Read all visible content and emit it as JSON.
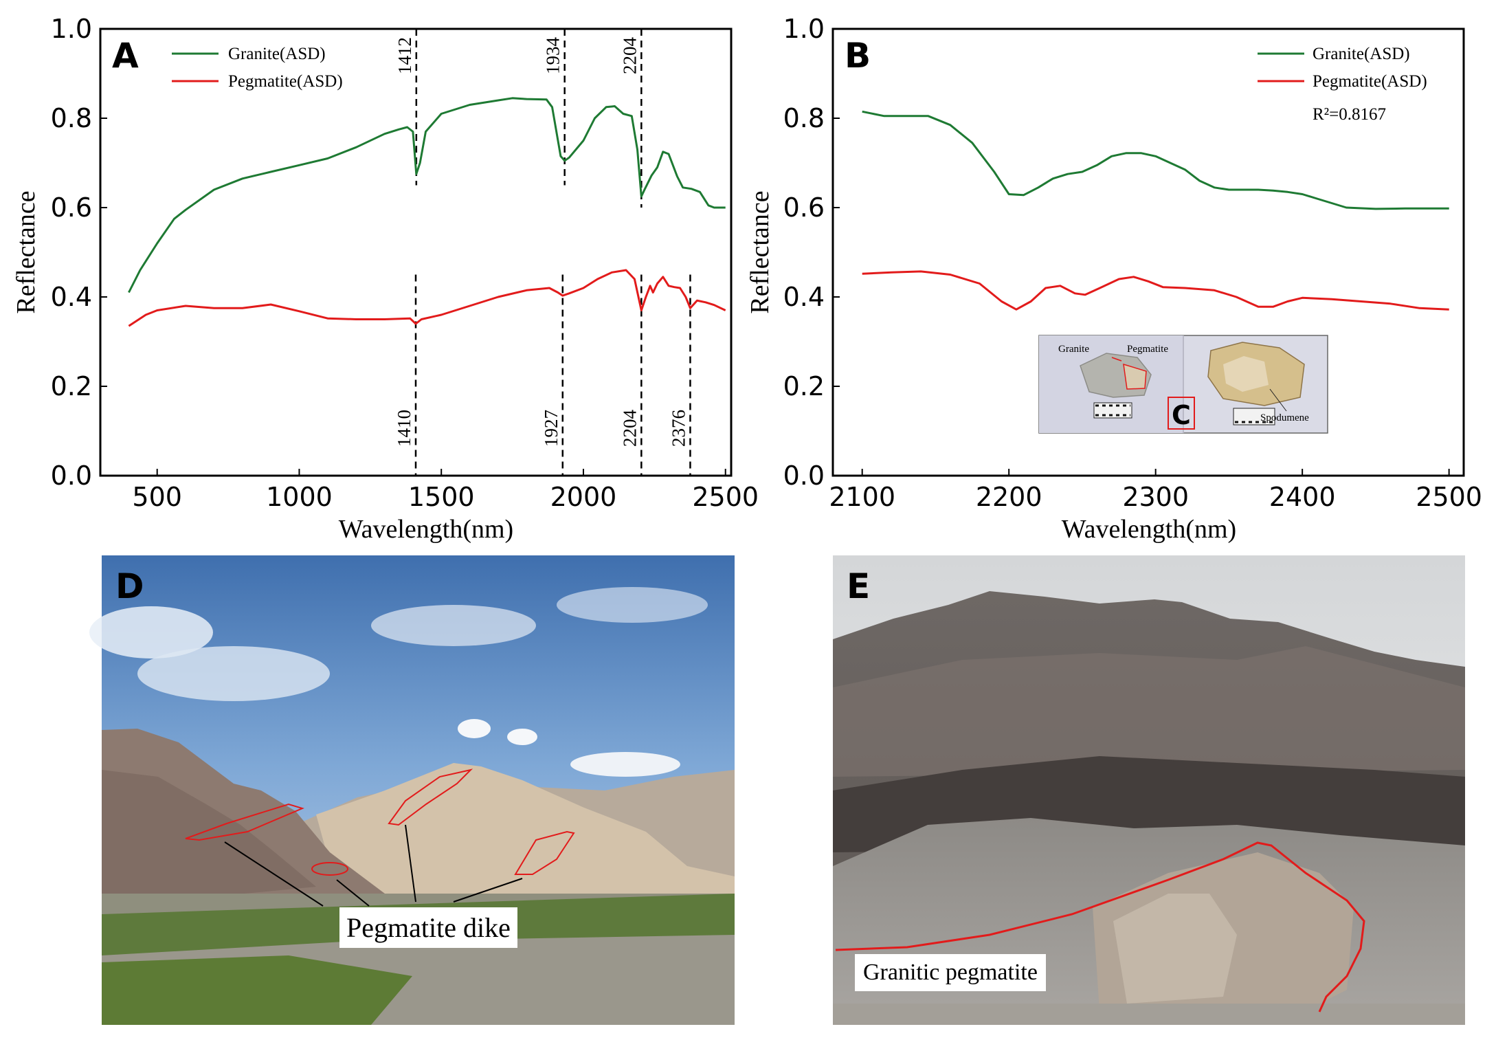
{
  "chart_data": [
    {
      "panel": "A",
      "type": "line",
      "xlabel": "Wavelength(nm)",
      "ylabel": "Reflectance",
      "xlim": [
        300,
        2520
      ],
      "ylim": [
        0.0,
        1.0
      ],
      "xticks": [
        500,
        1000,
        1500,
        2000,
        2500
      ],
      "yticks": [
        "0.0",
        "0.2",
        "0.4",
        "0.6",
        "0.8",
        "1.0"
      ],
      "legend": "top-left",
      "series": [
        {
          "name": "Granite(ASD)",
          "color": "#1e7a33",
          "points": [
            [
              400,
              0.41
            ],
            [
              440,
              0.46
            ],
            [
              500,
              0.52
            ],
            [
              560,
              0.575
            ],
            [
              600,
              0.595
            ],
            [
              700,
              0.64
            ],
            [
              800,
              0.665
            ],
            [
              900,
              0.68
            ],
            [
              1000,
              0.695
            ],
            [
              1100,
              0.71
            ],
            [
              1200,
              0.735
            ],
            [
              1300,
              0.765
            ],
            [
              1350,
              0.775
            ],
            [
              1380,
              0.78
            ],
            [
              1400,
              0.77
            ],
            [
              1412,
              0.675
            ],
            [
              1425,
              0.7
            ],
            [
              1445,
              0.77
            ],
            [
              1500,
              0.81
            ],
            [
              1600,
              0.83
            ],
            [
              1700,
              0.84
            ],
            [
              1750,
              0.845
            ],
            [
              1800,
              0.843
            ],
            [
              1870,
              0.842
            ],
            [
              1890,
              0.825
            ],
            [
              1920,
              0.715
            ],
            [
              1934,
              0.705
            ],
            [
              1950,
              0.712
            ],
            [
              2000,
              0.75
            ],
            [
              2040,
              0.8
            ],
            [
              2080,
              0.825
            ],
            [
              2110,
              0.827
            ],
            [
              2140,
              0.81
            ],
            [
              2170,
              0.805
            ],
            [
              2190,
              0.73
            ],
            [
              2204,
              0.625
            ],
            [
              2215,
              0.64
            ],
            [
              2240,
              0.672
            ],
            [
              2260,
              0.69
            ],
            [
              2280,
              0.725
            ],
            [
              2300,
              0.72
            ],
            [
              2330,
              0.67
            ],
            [
              2350,
              0.645
            ],
            [
              2380,
              0.642
            ],
            [
              2410,
              0.635
            ],
            [
              2440,
              0.605
            ],
            [
              2460,
              0.6
            ],
            [
              2500,
              0.6
            ]
          ]
        },
        {
          "name": "Pegmatite(ASD)",
          "color": "#e21b1b",
          "points": [
            [
              400,
              0.335
            ],
            [
              460,
              0.36
            ],
            [
              500,
              0.37
            ],
            [
              600,
              0.38
            ],
            [
              700,
              0.375
            ],
            [
              800,
              0.375
            ],
            [
              900,
              0.383
            ],
            [
              1000,
              0.368
            ],
            [
              1100,
              0.352
            ],
            [
              1200,
              0.35
            ],
            [
              1300,
              0.35
            ],
            [
              1390,
              0.352
            ],
            [
              1410,
              0.34
            ],
            [
              1430,
              0.35
            ],
            [
              1500,
              0.36
            ],
            [
              1600,
              0.38
            ],
            [
              1700,
              0.4
            ],
            [
              1800,
              0.415
            ],
            [
              1880,
              0.42
            ],
            [
              1910,
              0.41
            ],
            [
              1927,
              0.403
            ],
            [
              1950,
              0.408
            ],
            [
              2000,
              0.42
            ],
            [
              2050,
              0.44
            ],
            [
              2100,
              0.455
            ],
            [
              2150,
              0.46
            ],
            [
              2180,
              0.44
            ],
            [
              2204,
              0.37
            ],
            [
              2220,
              0.4
            ],
            [
              2235,
              0.425
            ],
            [
              2245,
              0.41
            ],
            [
              2260,
              0.43
            ],
            [
              2280,
              0.445
            ],
            [
              2300,
              0.425
            ],
            [
              2320,
              0.422
            ],
            [
              2340,
              0.42
            ],
            [
              2360,
              0.4
            ],
            [
              2376,
              0.375
            ],
            [
              2400,
              0.392
            ],
            [
              2430,
              0.388
            ],
            [
              2460,
              0.382
            ],
            [
              2500,
              0.37
            ]
          ]
        }
      ],
      "annotations": [
        {
          "text": "1412",
          "x": 1412,
          "y0": 0.65,
          "y1": 1.0,
          "pos": "top"
        },
        {
          "text": "1934",
          "x": 1934,
          "y0": 0.65,
          "y1": 1.0,
          "pos": "top"
        },
        {
          "text": "2204",
          "x": 2204,
          "y0": 0.6,
          "y1": 1.0,
          "pos": "top"
        },
        {
          "text": "1410",
          "x": 1410,
          "y0": 0.0,
          "y1": 0.45,
          "pos": "bottom"
        },
        {
          "text": "1927",
          "x": 1927,
          "y0": 0.0,
          "y1": 0.45,
          "pos": "bottom"
        },
        {
          "text": "2204",
          "x": 2204,
          "y0": 0.0,
          "y1": 0.45,
          "pos": "bottom"
        },
        {
          "text": "2376",
          "x": 2376,
          "y0": 0.0,
          "y1": 0.45,
          "pos": "bottom"
        }
      ]
    },
    {
      "panel": "B",
      "type": "line",
      "xlabel": "Wavelength(nm)",
      "ylabel": "Reflectance",
      "xlim": [
        2080,
        2510
      ],
      "ylim": [
        0.0,
        1.0
      ],
      "xticks": [
        2100,
        2200,
        2300,
        2400,
        2500
      ],
      "yticks": [
        "0.0",
        "0.2",
        "0.4",
        "0.6",
        "0.8",
        "1.0"
      ],
      "legend": "top-right",
      "r2_text": "R²=0.8167",
      "series": [
        {
          "name": "Granite(ASD)",
          "color": "#1e7a33",
          "points": [
            [
              2100,
              0.815
            ],
            [
              2115,
              0.805
            ],
            [
              2130,
              0.805
            ],
            [
              2145,
              0.805
            ],
            [
              2160,
              0.785
            ],
            [
              2175,
              0.745
            ],
            [
              2190,
              0.68
            ],
            [
              2200,
              0.63
            ],
            [
              2210,
              0.628
            ],
            [
              2220,
              0.645
            ],
            [
              2230,
              0.665
            ],
            [
              2240,
              0.675
            ],
            [
              2250,
              0.68
            ],
            [
              2260,
              0.695
            ],
            [
              2270,
              0.715
            ],
            [
              2280,
              0.722
            ],
            [
              2290,
              0.722
            ],
            [
              2300,
              0.715
            ],
            [
              2310,
              0.7
            ],
            [
              2320,
              0.685
            ],
            [
              2330,
              0.66
            ],
            [
              2340,
              0.645
            ],
            [
              2350,
              0.64
            ],
            [
              2360,
              0.64
            ],
            [
              2370,
              0.64
            ],
            [
              2380,
              0.638
            ],
            [
              2390,
              0.635
            ],
            [
              2400,
              0.63
            ],
            [
              2410,
              0.62
            ],
            [
              2420,
              0.61
            ],
            [
              2430,
              0.6
            ],
            [
              2450,
              0.597
            ],
            [
              2470,
              0.598
            ],
            [
              2500,
              0.598
            ]
          ]
        },
        {
          "name": "Pegmatite(ASD)",
          "color": "#e21b1b",
          "points": [
            [
              2100,
              0.452
            ],
            [
              2120,
              0.455
            ],
            [
              2140,
              0.457
            ],
            [
              2160,
              0.45
            ],
            [
              2180,
              0.43
            ],
            [
              2195,
              0.39
            ],
            [
              2205,
              0.372
            ],
            [
              2215,
              0.39
            ],
            [
              2225,
              0.42
            ],
            [
              2235,
              0.425
            ],
            [
              2245,
              0.408
            ],
            [
              2252,
              0.405
            ],
            [
              2262,
              0.42
            ],
            [
              2275,
              0.44
            ],
            [
              2285,
              0.445
            ],
            [
              2295,
              0.435
            ],
            [
              2305,
              0.422
            ],
            [
              2320,
              0.42
            ],
            [
              2340,
              0.415
            ],
            [
              2355,
              0.4
            ],
            [
              2370,
              0.378
            ],
            [
              2380,
              0.378
            ],
            [
              2390,
              0.39
            ],
            [
              2400,
              0.398
            ],
            [
              2420,
              0.395
            ],
            [
              2440,
              0.39
            ],
            [
              2460,
              0.385
            ],
            [
              2480,
              0.375
            ],
            [
              2500,
              0.372
            ]
          ]
        }
      ]
    }
  ],
  "panels": {
    "A_letter": "A",
    "B_letter": "B",
    "C_letter": "C",
    "D_letter": "D",
    "E_letter": "E"
  },
  "inset_c": {
    "granite": "Granite",
    "pegmatite": "Pegmatite",
    "spodumene": "Spodumene"
  },
  "photo_d": {
    "label": "Pegmatite dike"
  },
  "photo_e": {
    "label": "Granitic pegmatite"
  }
}
